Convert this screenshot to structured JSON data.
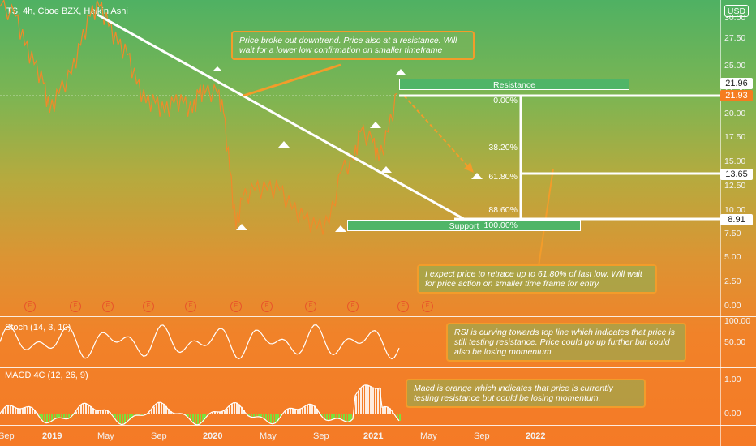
{
  "header": {
    "title": "TS, 4h, Cboe BZX, Heikin Ashi",
    "currency": "USD"
  },
  "price_axis": {
    "ticks": [
      "30.00",
      "27.50",
      "25.00",
      "22.50",
      "20.00",
      "17.50",
      "15.00",
      "12.50",
      "10.00",
      "7.50",
      "5.00",
      "2.50",
      "0.00"
    ],
    "tags": [
      {
        "value": "21.96",
        "bg": "#ffffff",
        "fg": "#222222"
      },
      {
        "value": "21.93",
        "bg": "#f57c1f",
        "fg": "#ffffff"
      },
      {
        "value": "13.65",
        "bg": "#ffffff",
        "fg": "#222222"
      },
      {
        "value": "8.91",
        "bg": "#ffffff",
        "fg": "#222222"
      }
    ]
  },
  "time_axis": [
    {
      "label": "Sep",
      "bold": false
    },
    {
      "label": "2019",
      "bold": true
    },
    {
      "label": "May",
      "bold": false
    },
    {
      "label": "Sep",
      "bold": false
    },
    {
      "label": "2020",
      "bold": true
    },
    {
      "label": "May",
      "bold": false
    },
    {
      "label": "Sep",
      "bold": false
    },
    {
      "label": "2021",
      "bold": true
    },
    {
      "label": "May",
      "bold": false
    },
    {
      "label": "Sep",
      "bold": false
    },
    {
      "label": "2022",
      "bold": true
    }
  ],
  "zones": {
    "resistance": "Resistance",
    "support": "Support"
  },
  "fib_levels": [
    "0.00%",
    "38.20%",
    "61.80%",
    "88.60%",
    "100.00%"
  ],
  "notes": {
    "breakout": "Price broke out downtrend. Price also at a resistance. Will wait for a lower low confirmation on smaller timeframe",
    "retrace": "I expect price to retrace up to 61.80% of last low. Will wait for price action on smaller time frame for entry.",
    "rsi": "RSI is curving towards top line which indicates that price is still testing resistance. Price could go up further but could also be losing momentum",
    "macd": "Macd is orange which indicates that price is currently testing resistance but could be losing momentum."
  },
  "indicators": {
    "stoch": {
      "label": "Stoch (14, 3, 10)",
      "ticks": [
        "100.00",
        "50.00"
      ]
    },
    "macd": {
      "label": "MACD 4C (12, 26, 9)",
      "ticks": [
        "1.00",
        "0.00"
      ]
    }
  },
  "events": [
    "E",
    "E",
    "E",
    "E",
    "E",
    "E",
    "E",
    "E",
    "E",
    "E",
    "E"
  ],
  "colors": {
    "price_line": "#f08a2a",
    "trend": "#ffffff",
    "zone": "#4fb567",
    "note_border": "#f39c2a",
    "macd_pos": "#7be03a"
  },
  "chart_data": {
    "type": "line",
    "title": "TS, 4h, Cboe BZX, Heikin Ashi",
    "x": [
      "Sep",
      "2019",
      "May",
      "Sep",
      "2020",
      "May",
      "Sep",
      "2021",
      "May",
      "Sep",
      "2022"
    ],
    "ylim": [
      0,
      31
    ],
    "series": [
      {
        "values": [
          [
            0,
            31
          ],
          [
            0.05,
            30
          ],
          [
            0.08,
            27
          ],
          [
            0.11,
            25
          ],
          [
            0.14,
            23
          ],
          [
            0.16,
            20
          ],
          [
            0.19,
            22
          ],
          [
            0.23,
            24
          ],
          [
            0.26,
            27
          ],
          [
            0.29,
            30
          ],
          [
            0.32,
            31
          ],
          [
            0.35,
            29
          ],
          [
            0.38,
            27
          ],
          [
            0.41,
            26
          ],
          [
            0.44,
            23
          ],
          [
            0.47,
            21
          ],
          [
            0.5,
            21
          ],
          [
            0.53,
            20
          ],
          [
            0.56,
            21
          ],
          [
            0.59,
            21
          ],
          [
            0.62,
            20
          ],
          [
            0.64,
            22
          ],
          [
            0.66,
            22
          ],
          [
            0.7,
            22
          ],
          [
            0.72,
            20
          ],
          [
            0.74,
            14
          ],
          [
            0.76,
            8
          ],
          [
            0.78,
            11
          ],
          [
            0.82,
            12
          ],
          [
            0.86,
            12
          ],
          [
            0.9,
            12
          ],
          [
            0.94,
            10
          ],
          [
            0.98,
            9
          ],
          [
            1.02,
            8
          ],
          [
            1.06,
            8.5
          ],
          [
            1.1,
            14
          ],
          [
            1.14,
            15
          ],
          [
            1.16,
            18
          ],
          [
            1.2,
            17
          ],
          [
            1.22,
            15
          ],
          [
            1.25,
            18
          ],
          [
            1.28,
            22
          ]
        ]
      }
    ],
    "annotations": [
      "Resistance",
      "Support",
      "0.00%",
      "38.20%",
      "61.80%",
      "88.60%",
      "100.00%"
    ]
  }
}
